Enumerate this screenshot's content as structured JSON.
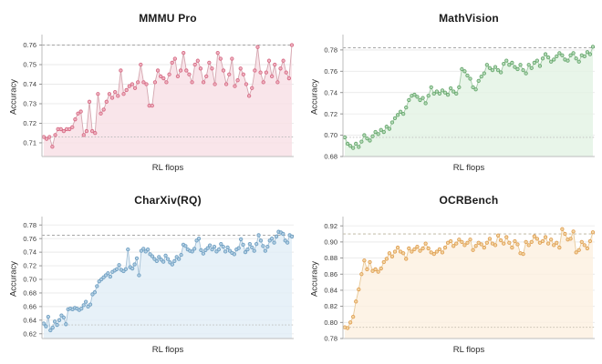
{
  "page": {
    "background": "#ffffff",
    "grid": "2x2 subplot figure of RL training curves"
  },
  "chart_data": [
    {
      "type": "line",
      "title": "MMMU Pro",
      "xlabel": "RL flops",
      "ylabel": "Accuracy",
      "ylim": [
        0.703,
        0.7635
      ],
      "yticks": [
        0.71,
        0.72,
        0.73,
        0.74,
        0.75,
        0.76
      ],
      "hlines": {
        "top": 0.76,
        "bottom": 0.713
      },
      "grid": true,
      "legend": "none",
      "colors": {
        "point": "#d76c86",
        "point_fill": "#f0b4c1",
        "line": "#d2a2ac",
        "area": "#f7dfe5",
        "hline_top": "#999999",
        "hline_bottom": "#bdbdbd"
      },
      "values": [
        0.713,
        0.712,
        0.713,
        0.708,
        0.714,
        0.717,
        0.717,
        0.716,
        0.717,
        0.717,
        0.718,
        0.722,
        0.725,
        0.726,
        0.714,
        0.716,
        0.731,
        0.716,
        0.715,
        0.735,
        0.725,
        0.727,
        0.731,
        0.735,
        0.733,
        0.736,
        0.734,
        0.747,
        0.735,
        0.737,
        0.739,
        0.74,
        0.738,
        0.741,
        0.75,
        0.741,
        0.74,
        0.729,
        0.729,
        0.741,
        0.747,
        0.744,
        0.743,
        0.741,
        0.745,
        0.751,
        0.753,
        0.744,
        0.747,
        0.756,
        0.747,
        0.745,
        0.741,
        0.75,
        0.752,
        0.748,
        0.741,
        0.744,
        0.751,
        0.748,
        0.74,
        0.756,
        0.753,
        0.747,
        0.74,
        0.745,
        0.753,
        0.739,
        0.742,
        0.748,
        0.745,
        0.74,
        0.734,
        0.738,
        0.747,
        0.759,
        0.746,
        0.741,
        0.746,
        0.752,
        0.744,
        0.75,
        0.741,
        0.748,
        0.752,
        0.746,
        0.743,
        0.76
      ]
    },
    {
      "type": "line",
      "title": "MathVision",
      "xlabel": "RL flops",
      "ylabel": "Accuracy",
      "ylim": [
        0.68,
        0.791
      ],
      "yticks": [
        0.68,
        0.7,
        0.72,
        0.74,
        0.76,
        0.78
      ],
      "hlines": {
        "top": 0.782,
        "bottom": 0.698
      },
      "grid": true,
      "legend": "none",
      "colors": {
        "point": "#69a86f",
        "point_fill": "#b7dcba",
        "line": "#9fc7a3",
        "area": "#e2f2e4",
        "hline_top": "#999999",
        "hline_bottom": "#bdbdbd"
      },
      "values": [
        0.698,
        0.692,
        0.69,
        0.688,
        0.692,
        0.689,
        0.694,
        0.7,
        0.697,
        0.695,
        0.699,
        0.703,
        0.701,
        0.705,
        0.703,
        0.708,
        0.706,
        0.712,
        0.716,
        0.719,
        0.722,
        0.72,
        0.726,
        0.733,
        0.737,
        0.738,
        0.736,
        0.733,
        0.735,
        0.73,
        0.737,
        0.745,
        0.739,
        0.741,
        0.739,
        0.742,
        0.74,
        0.738,
        0.744,
        0.741,
        0.739,
        0.745,
        0.762,
        0.76,
        0.756,
        0.753,
        0.745,
        0.743,
        0.751,
        0.755,
        0.758,
        0.766,
        0.763,
        0.761,
        0.764,
        0.761,
        0.759,
        0.767,
        0.77,
        0.766,
        0.768,
        0.764,
        0.762,
        0.766,
        0.761,
        0.758,
        0.766,
        0.763,
        0.768,
        0.77,
        0.765,
        0.772,
        0.776,
        0.773,
        0.769,
        0.771,
        0.774,
        0.777,
        0.775,
        0.771,
        0.77,
        0.775,
        0.777,
        0.772,
        0.769,
        0.775,
        0.774,
        0.778,
        0.776,
        0.783
      ]
    },
    {
      "type": "line",
      "title": "CharXiv(RQ)",
      "xlabel": "RL flops",
      "ylabel": "Accuracy",
      "ylim": [
        0.613,
        0.787
      ],
      "yticks": [
        0.62,
        0.64,
        0.66,
        0.68,
        0.7,
        0.72,
        0.74,
        0.76,
        0.78
      ],
      "hlines": {
        "top": 0.765,
        "bottom": 0.633
      },
      "grid": true,
      "legend": "none",
      "colors": {
        "point": "#6f9fc2",
        "point_fill": "#b3cfe3",
        "line": "#9fbdd4",
        "area": "#e1edf6",
        "hline_top": "#999999",
        "hline_bottom": "#bdbdbd"
      },
      "values": [
        0.635,
        0.631,
        0.645,
        0.625,
        0.629,
        0.638,
        0.633,
        0.64,
        0.647,
        0.644,
        0.634,
        0.656,
        0.657,
        0.656,
        0.658,
        0.657,
        0.655,
        0.657,
        0.662,
        0.667,
        0.66,
        0.663,
        0.678,
        0.681,
        0.69,
        0.697,
        0.7,
        0.703,
        0.706,
        0.709,
        0.704,
        0.711,
        0.713,
        0.715,
        0.721,
        0.714,
        0.712,
        0.715,
        0.744,
        0.718,
        0.716,
        0.722,
        0.731,
        0.706,
        0.742,
        0.745,
        0.741,
        0.744,
        0.737,
        0.734,
        0.73,
        0.727,
        0.733,
        0.729,
        0.726,
        0.735,
        0.73,
        0.725,
        0.722,
        0.727,
        0.733,
        0.73,
        0.736,
        0.751,
        0.749,
        0.744,
        0.742,
        0.741,
        0.745,
        0.757,
        0.76,
        0.743,
        0.738,
        0.743,
        0.746,
        0.75,
        0.744,
        0.748,
        0.741,
        0.744,
        0.752,
        0.748,
        0.741,
        0.747,
        0.742,
        0.739,
        0.737,
        0.744,
        0.746,
        0.759,
        0.751,
        0.74,
        0.744,
        0.752,
        0.747,
        0.742,
        0.752,
        0.765,
        0.757,
        0.749,
        0.742,
        0.748,
        0.757,
        0.76,
        0.754,
        0.763,
        0.77,
        0.769,
        0.767,
        0.757,
        0.754,
        0.765,
        0.763
      ]
    },
    {
      "type": "line",
      "title": "OCRBench",
      "xlabel": "RL flops",
      "ylabel": "Accuracy",
      "ylim": [
        0.78,
        0.927
      ],
      "yticks": [
        0.78,
        0.8,
        0.82,
        0.84,
        0.86,
        0.88,
        0.9,
        0.92
      ],
      "hlines": {
        "top": 0.91,
        "bottom": 0.794
      },
      "grid": true,
      "legend": "none",
      "colors": {
        "point": "#e0a055",
        "point_fill": "#f3d6a3",
        "line": "#e6c694",
        "area": "#fcf0e0",
        "hline_top": "#b9b098",
        "hline_bottom": "#c9c2b4"
      },
      "values": [
        0.794,
        0.793,
        0.8,
        0.807,
        0.826,
        0.841,
        0.86,
        0.877,
        0.866,
        0.875,
        0.864,
        0.866,
        0.863,
        0.867,
        0.875,
        0.879,
        0.886,
        0.882,
        0.888,
        0.893,
        0.888,
        0.886,
        0.879,
        0.892,
        0.888,
        0.891,
        0.894,
        0.889,
        0.892,
        0.898,
        0.892,
        0.887,
        0.885,
        0.888,
        0.891,
        0.887,
        0.893,
        0.899,
        0.901,
        0.895,
        0.898,
        0.903,
        0.9,
        0.896,
        0.899,
        0.903,
        0.89,
        0.895,
        0.899,
        0.897,
        0.893,
        0.899,
        0.904,
        0.898,
        0.896,
        0.908,
        0.902,
        0.898,
        0.906,
        0.899,
        0.893,
        0.901,
        0.897,
        0.886,
        0.885,
        0.9,
        0.896,
        0.9,
        0.907,
        0.904,
        0.899,
        0.901,
        0.906,
        0.898,
        0.903,
        0.896,
        0.899,
        0.893,
        0.916,
        0.91,
        0.903,
        0.904,
        0.913,
        0.887,
        0.89,
        0.9,
        0.896,
        0.892,
        0.901,
        0.912
      ]
    }
  ]
}
